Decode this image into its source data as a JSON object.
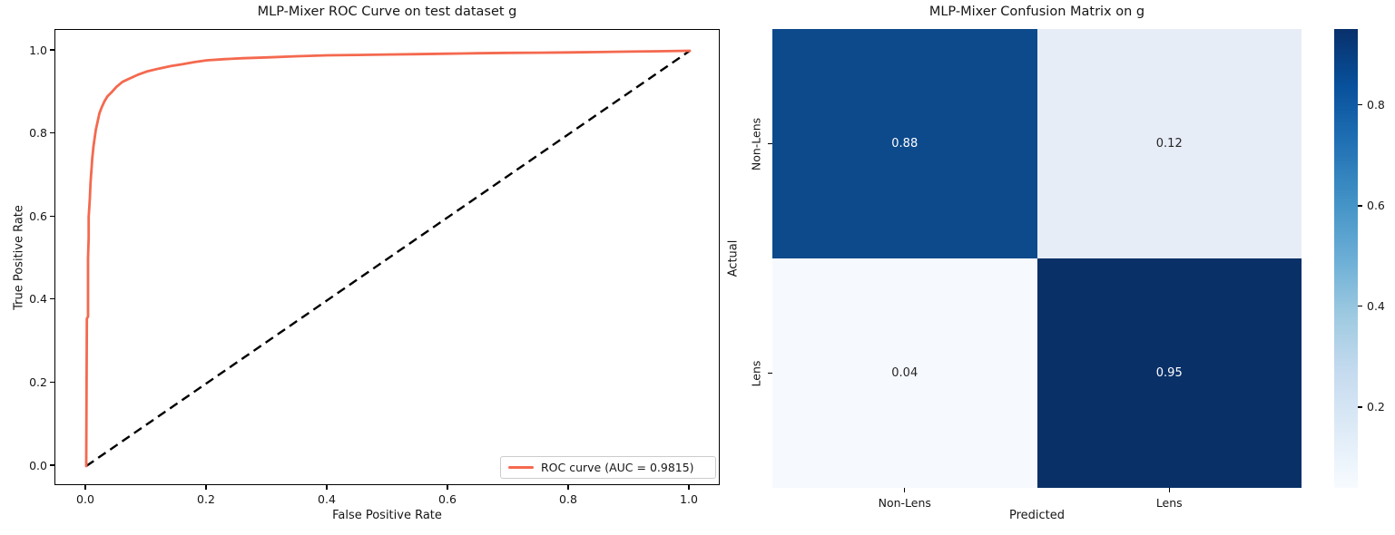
{
  "page": {
    "background": "#ffffff"
  },
  "chart_data": [
    {
      "type": "line",
      "name": "roc-curve-plot",
      "title": "MLP-Mixer ROC Curve on test dataset g",
      "xlabel": "False Positive Rate",
      "ylabel": "True Positive Rate",
      "xlim": [
        -0.05,
        1.05
      ],
      "ylim": [
        -0.05,
        1.05
      ],
      "x_ticks": [
        "0.0",
        "0.2",
        "0.4",
        "0.6",
        "0.8",
        "1.0"
      ],
      "y_ticks": [
        "0.0",
        "0.2",
        "0.4",
        "0.6",
        "0.8",
        "1.0"
      ],
      "grid": false,
      "auc": 0.9815,
      "legend": {
        "position": "lower right",
        "label": "ROC curve (AUC = 0.9815)"
      },
      "series": [
        {
          "name": "ROC curve",
          "color": "#f4694f",
          "style": "solid",
          "points": [
            [
              0.0,
              0.0
            ],
            [
              0.001,
              0.355
            ],
            [
              0.003,
              0.36
            ],
            [
              0.003,
              0.5
            ],
            [
              0.004,
              0.55
            ],
            [
              0.004,
              0.6
            ],
            [
              0.005,
              0.62
            ],
            [
              0.006,
              0.645
            ],
            [
              0.007,
              0.68
            ],
            [
              0.008,
              0.7
            ],
            [
              0.009,
              0.72
            ],
            [
              0.01,
              0.74
            ],
            [
              0.012,
              0.77
            ],
            [
              0.014,
              0.79
            ],
            [
              0.016,
              0.81
            ],
            [
              0.019,
              0.83
            ],
            [
              0.022,
              0.85
            ],
            [
              0.026,
              0.865
            ],
            [
              0.03,
              0.878
            ],
            [
              0.035,
              0.89
            ],
            [
              0.042,
              0.9
            ],
            [
              0.05,
              0.913
            ],
            [
              0.06,
              0.925
            ],
            [
              0.07,
              0.932
            ],
            [
              0.085,
              0.942
            ],
            [
              0.1,
              0.95
            ],
            [
              0.12,
              0.957
            ],
            [
              0.14,
              0.963
            ],
            [
              0.16,
              0.968
            ],
            [
              0.18,
              0.973
            ],
            [
              0.2,
              0.977
            ],
            [
              0.23,
              0.98
            ],
            [
              0.26,
              0.982
            ],
            [
              0.3,
              0.984
            ],
            [
              0.35,
              0.987
            ],
            [
              0.4,
              0.989
            ],
            [
              0.45,
              0.99
            ],
            [
              0.5,
              0.991
            ],
            [
              0.55,
              0.992
            ],
            [
              0.6,
              0.993
            ],
            [
              0.65,
              0.994
            ],
            [
              0.7,
              0.995
            ],
            [
              0.75,
              0.9955
            ],
            [
              0.8,
              0.996
            ],
            [
              0.85,
              0.997
            ],
            [
              0.9,
              0.998
            ],
            [
              0.95,
              0.999
            ],
            [
              1.0,
              1.0
            ]
          ]
        },
        {
          "name": "chance diagonal",
          "color": "#000000",
          "style": "dashed",
          "points": [
            [
              0.0,
              0.0
            ],
            [
              1.0,
              1.0
            ]
          ]
        }
      ]
    },
    {
      "type": "heatmap",
      "name": "confusion-matrix",
      "title": "MLP-Mixer Confusion Matrix on g",
      "xlabel": "Predicted",
      "ylabel": "Actual",
      "x_categories": [
        "Non-Lens",
        "Lens"
      ],
      "y_categories": [
        "Non-Lens",
        "Lens"
      ],
      "values": [
        [
          0.88,
          0.12
        ],
        [
          0.04,
          0.95
        ]
      ],
      "cell_colors": [
        [
          "#0d4a8c",
          "#e7edf7"
        ],
        [
          "#f6f9fe",
          "#0a3068"
        ]
      ],
      "cell_text_colors": [
        [
          "#ffffff",
          "#262626"
        ],
        [
          "#262626",
          "#ffffff"
        ]
      ],
      "colormap": "Blues",
      "colorbar": {
        "ticks": [
          {
            "label": "0.8",
            "frac_from_top": 0.165
          },
          {
            "label": "0.6",
            "frac_from_top": 0.385
          },
          {
            "label": "0.4",
            "frac_from_top": 0.604
          },
          {
            "label": "0.2",
            "frac_from_top": 0.824
          }
        ],
        "gradient_stops": [
          "#08306b",
          "#08519c",
          "#2171b5",
          "#4292c6",
          "#6baed6",
          "#9ecae1",
          "#c6dbef",
          "#deebf7",
          "#f7fbff"
        ]
      }
    }
  ]
}
